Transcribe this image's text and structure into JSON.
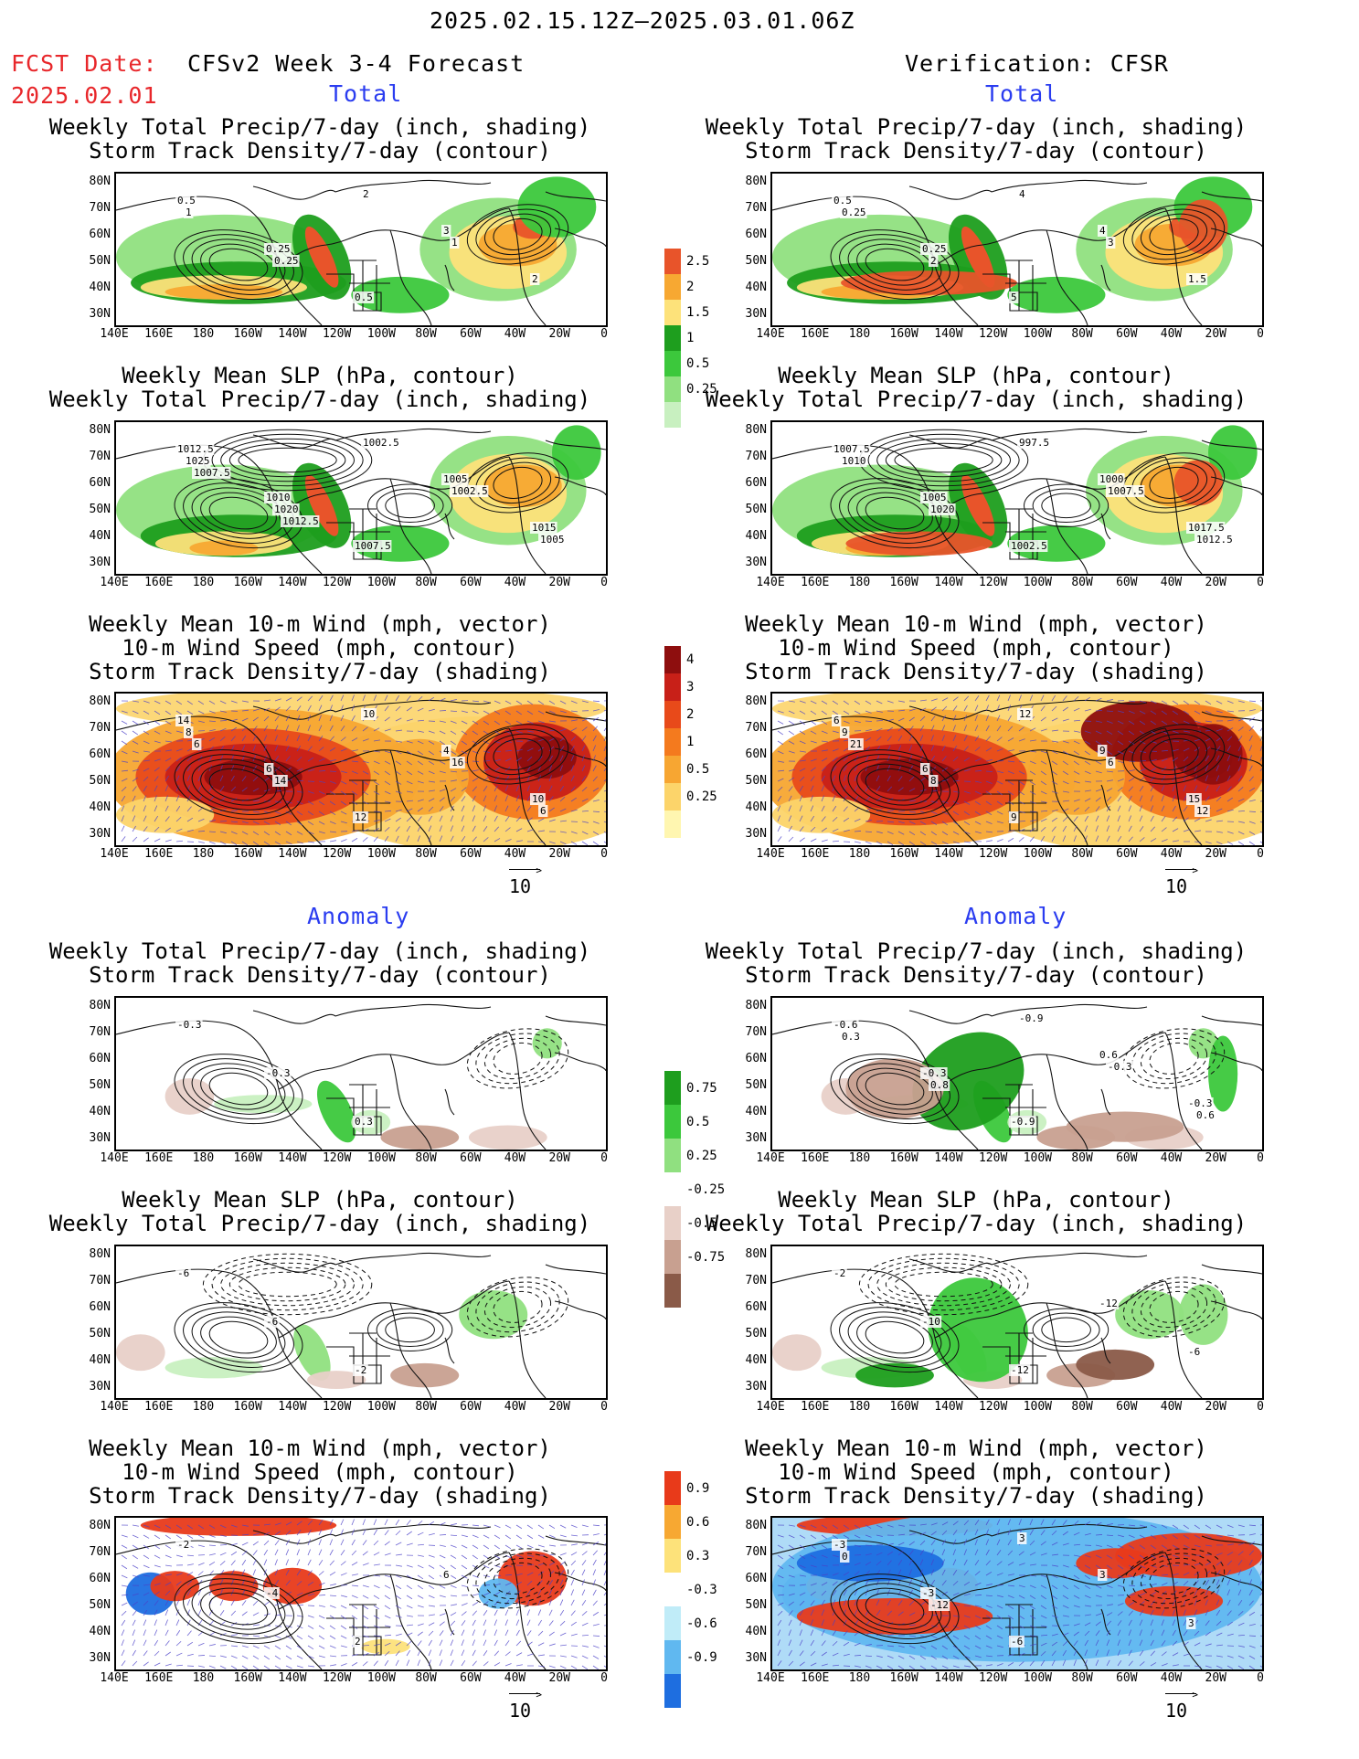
{
  "header": {
    "period": "2025.02.15.12Z–2025.03.01.06Z",
    "fcst_label": "FCST Date:",
    "fcst_date": "2025.02.01",
    "left_title": "CFSv2 Week 3-4 Forecast",
    "right_title": "Verification: CFSR"
  },
  "sections": {
    "total": "Total",
    "anomaly": "Anomaly"
  },
  "panel_titles": {
    "precip_storm": [
      "Weekly Total Precip/7-day (inch, shading)",
      "Storm Track Density/7-day (contour)"
    ],
    "slp_precip": [
      "Weekly Mean SLP (hPa, contour)",
      "Weekly Total Precip/7-day (inch, shading)"
    ],
    "wind_storm": [
      "Weekly Mean 10-m Wind (mph, vector)",
      "10-m Wind Speed (mph, contour)",
      "Storm Track Density/7-day (shading)"
    ]
  },
  "axes": {
    "lat_labels": [
      "80N",
      "70N",
      "60N",
      "50N",
      "40N",
      "30N"
    ],
    "lon_labels": [
      "140E",
      "160E",
      "180",
      "160W",
      "140W",
      "120W",
      "100W",
      "80W",
      "60W",
      "40W",
      "20W",
      "0"
    ]
  },
  "vector_ref": "10",
  "colorbars": {
    "precip_total": {
      "labels": [
        "2.5",
        "2",
        "1.5",
        "1",
        "0.5",
        "0.25"
      ]
    },
    "storm_total": {
      "labels": [
        "4",
        "3",
        "2",
        "1",
        "0.5",
        "0.25"
      ]
    },
    "precip_anom": {
      "labels": [
        "0.75",
        "0.5",
        "0.25",
        "-0.25",
        "-0.5",
        "-0.75"
      ]
    },
    "storm_anom": {
      "labels": [
        "0.9",
        "0.6",
        "0.3",
        "-0.3",
        "-0.6",
        "-0.9"
      ]
    }
  },
  "colors": {
    "precip": [
      "#c8f0c0",
      "#90e080",
      "#3cc83c",
      "#1e9e1e",
      "#fde27a",
      "#f7a832",
      "#e8542a"
    ],
    "storm": [
      "#fff6b0",
      "#fcd46a",
      "#f7a632",
      "#f47a1e",
      "#e84a1a",
      "#c82018",
      "#8e0e0e"
    ],
    "anom_neg_brown": [
      "#e8d0c8",
      "#c8a090",
      "#8a5a48"
    ],
    "anom_neg_blue": [
      "#c0ecf8",
      "#60b8f0",
      "#1e6ee0"
    ],
    "anom_pos_red": [
      "#fde27a",
      "#f7a832",
      "#e83a1a"
    ]
  },
  "contour_labels": {
    "p11": [
      "0.5",
      "0.25",
      "0.5",
      "3",
      "2",
      "1",
      "0.25",
      "2",
      "1"
    ],
    "p12": [
      "0.5",
      "0.25",
      "5",
      "4",
      "1.5",
      "0.25",
      "2",
      "4",
      "3"
    ],
    "p21": [
      "1012.5",
      "1010",
      "1007.5",
      "1005",
      "1015",
      "1025",
      "1020",
      "1002.5",
      "1002.5",
      "1005",
      "1007.5",
      "1012.5"
    ],
    "p22": [
      "1007.5",
      "1005",
      "1002.5",
      "1000",
      "1017.5",
      "1010",
      "1020",
      "997.5",
      "1007.5",
      "1012.5"
    ],
    "p31": [
      "14",
      "6",
      "12",
      "4",
      "10",
      "8",
      "14",
      "10",
      "16",
      "6",
      "6"
    ],
    "p32": [
      "6",
      "6",
      "9",
      "9",
      "15",
      "9",
      "8",
      "12",
      "6",
      "12",
      "21"
    ],
    "p41": [
      "-0.3",
      "-0.3",
      "0.3"
    ],
    "p42": [
      "-0.6",
      "-0.3",
      "-0.9",
      "0.6",
      "-0.3",
      "0.3",
      "0.8",
      "-0.9",
      "-0.3",
      "0.6"
    ],
    "p51": [
      "-6",
      "-6",
      "-2"
    ],
    "p52": [
      "-2",
      "-10",
      "-12",
      "-12",
      "-6"
    ],
    "p61": [
      "-2",
      "-4",
      "2",
      "6"
    ],
    "p62": [
      "-3",
      "-3",
      "-6",
      "3",
      "3",
      "0",
      "-12",
      "3"
    ]
  }
}
